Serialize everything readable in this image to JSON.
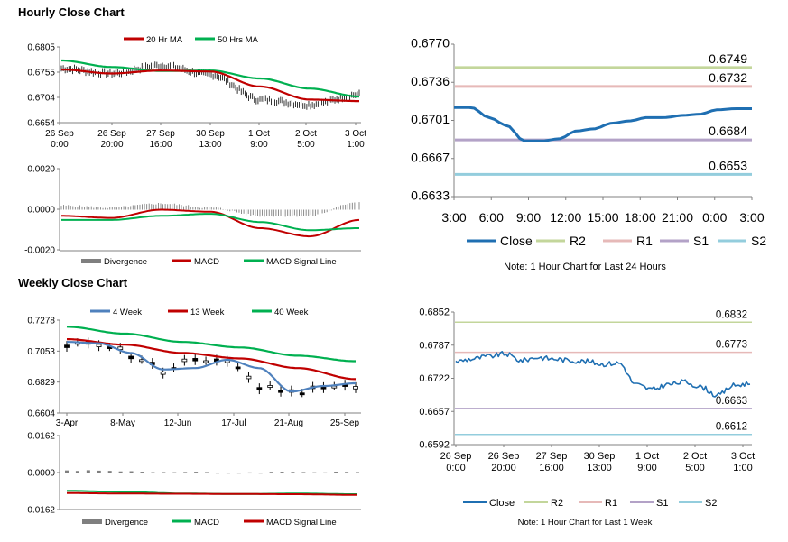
{
  "hourly": {
    "title": "Hourly Close Chart",
    "price_panel": {
      "legend": [
        "20 Hr MA",
        "50 Hrs MA"
      ],
      "y_ticks": [
        "0.6805",
        "0.6755",
        "0.6704",
        "0.6654"
      ],
      "x_ticks": [
        "26 Sep\n0:00",
        "26 Sep\n20:00",
        "27 Sep\n16:00",
        "30 Sep\n13:00",
        "1 Oct\n9:00",
        "2 Oct\n5:00",
        "3 Oct\n1:00"
      ]
    },
    "macd_panel": {
      "y_ticks": [
        "0.0020",
        "0.0000",
        "-0.0020"
      ],
      "legend": [
        "Divergence",
        "MACD",
        "MACD Signal Line"
      ]
    },
    "pivot_chart": {
      "y_ticks": [
        "0.6770",
        "0.6736",
        "0.6701",
        "0.6667",
        "0.6633"
      ],
      "x_ticks": [
        "3:00",
        "6:00",
        "9:00",
        "12:00",
        "15:00",
        "18:00",
        "21:00",
        "0:00",
        "3:00"
      ],
      "legend": [
        "Close",
        "R2",
        "R1",
        "S1",
        "S2"
      ],
      "note": "Note: 1 Hour Chart for Last 24 Hours"
    }
  },
  "weekly": {
    "title": "Weekly Close Chart",
    "price_panel": {
      "legend": [
        "4 Week",
        "13 Week",
        "40 Week"
      ],
      "y_ticks": [
        "0.7278",
        "0.7053",
        "0.6829",
        "0.6604"
      ],
      "x_ticks": [
        "3-Apr",
        "8-May",
        "12-Jun",
        "17-Jul",
        "21-Aug",
        "25-Sep"
      ]
    },
    "macd_panel": {
      "y_ticks": [
        "0.0162",
        "0.0000",
        "-0.0162"
      ],
      "legend": [
        "Divergence",
        "MACD",
        "MACD Signal Line"
      ]
    },
    "pivot_chart": {
      "y_ticks": [
        "0.6852",
        "0.6787",
        "0.6722",
        "0.6657",
        "0.6592"
      ],
      "x_ticks": [
        "26 Sep\n0:00",
        "26 Sep\n20:00",
        "27 Sep\n16:00",
        "30 Sep\n13:00",
        "1 Oct\n9:00",
        "2 Oct\n5:00",
        "3 Oct\n1:00"
      ],
      "legend": [
        "Close",
        "R2",
        "R1",
        "S1",
        "S2"
      ],
      "note": "Note: 1 Hour Chart for Last 1 Week"
    }
  },
  "colors": {
    "ma_red": "#c00000",
    "ma_green": "#00b050",
    "ma_blue": "#4f81bd",
    "close": "#1f6fb2",
    "r2": "#c3d69b",
    "r1": "#e6b9b8",
    "s1": "#b3a2c7",
    "s2": "#93cddd",
    "divergence": "#7f7f7f",
    "candle": "#000000"
  },
  "chart_data": [
    {
      "type": "line",
      "title": "Hourly Close Chart",
      "x": [
        "26 Sep 0:00",
        "26 Sep 20:00",
        "27 Sep 16:00",
        "30 Sep 13:00",
        "1 Oct 9:00",
        "2 Oct 5:00",
        "3 Oct 1:00"
      ],
      "ylim": [
        0.6654,
        0.6805
      ],
      "series": [
        {
          "name": "20 Hr MA",
          "values": [
            0.676,
            0.6752,
            0.6758,
            0.6756,
            0.6726,
            0.67,
            0.6697
          ]
        },
        {
          "name": "50 Hrs MA",
          "values": [
            0.6778,
            0.6765,
            0.6757,
            0.6758,
            0.6742,
            0.6722,
            0.6706
          ]
        },
        {
          "name": "Close",
          "values": [
            0.6762,
            0.6752,
            0.6768,
            0.675,
            0.67,
            0.669,
            0.671
          ]
        }
      ]
    },
    {
      "type": "line",
      "title": "",
      "ylim": [
        -0.002,
        0.002
      ],
      "series": [
        {
          "name": "MACD",
          "values": [
            -0.0003,
            -0.0004,
            0.0,
            -0.0001,
            -0.0009,
            -0.0013,
            -0.0005
          ]
        },
        {
          "name": "MACD Signal Line",
          "values": [
            -0.0005,
            -0.0005,
            -0.0003,
            -0.0002,
            -0.0006,
            -0.001,
            -0.0009
          ]
        },
        {
          "name": "Divergence",
          "values": [
            0.0002,
            0.0001,
            0.0003,
            0.0001,
            -0.0003,
            -0.0003,
            0.0004
          ]
        }
      ]
    },
    {
      "type": "line",
      "title": "",
      "x": [
        "3:00",
        "6:00",
        "9:00",
        "12:00",
        "15:00",
        "18:00",
        "21:00",
        "0:00",
        "3:00"
      ],
      "ylim": [
        0.6633,
        0.677
      ],
      "series": [
        {
          "name": "Close",
          "values": [
            0.6713,
            0.6704,
            0.6683,
            0.6685,
            0.6694,
            0.6699,
            0.6704,
            0.671,
            0.6712
          ]
        },
        {
          "name": "R2",
          "values": [
            0.6749,
            0.6749,
            0.6749,
            0.6749,
            0.6749,
            0.6749,
            0.6749,
            0.6749,
            0.6749
          ]
        },
        {
          "name": "R1",
          "values": [
            0.6732,
            0.6732,
            0.6732,
            0.6732,
            0.6732,
            0.6732,
            0.6732,
            0.6732,
            0.6732
          ]
        },
        {
          "name": "S1",
          "values": [
            0.6684,
            0.6684,
            0.6684,
            0.6684,
            0.6684,
            0.6684,
            0.6684,
            0.6684,
            0.6684
          ]
        },
        {
          "name": "S2",
          "values": [
            0.6653,
            0.6653,
            0.6653,
            0.6653,
            0.6653,
            0.6653,
            0.6653,
            0.6653,
            0.6653
          ]
        }
      ]
    },
    {
      "type": "line",
      "title": "Weekly Close Chart",
      "x": [
        "3-Apr",
        "8-May",
        "12-Jun",
        "17-Jul",
        "21-Aug",
        "25-Sep"
      ],
      "ylim": [
        0.6604,
        0.7278
      ],
      "series": [
        {
          "name": "4 Week",
          "values": [
            0.712,
            0.705,
            0.692,
            0.699,
            0.676,
            0.682
          ]
        },
        {
          "name": "13 Week",
          "values": [
            0.714,
            0.71,
            0.704,
            0.7,
            0.693,
            0.685
          ]
        },
        {
          "name": "40 Week",
          "values": [
            0.723,
            0.718,
            0.712,
            0.708,
            0.702,
            0.698
          ]
        }
      ]
    },
    {
      "type": "line",
      "title": "",
      "ylim": [
        -0.0162,
        0.0162
      ],
      "series": [
        {
          "name": "MACD",
          "values": [
            -0.008,
            -0.0085,
            -0.0092,
            -0.0094,
            -0.0092,
            -0.0095
          ]
        },
        {
          "name": "MACD Signal Line",
          "values": [
            -0.009,
            -0.0092,
            -0.0093,
            -0.0094,
            -0.0095,
            -0.0098
          ]
        },
        {
          "name": "Divergence",
          "values": [
            0.001,
            0.0006,
            0.0001,
            0.0,
            0.0003,
            0.0003
          ]
        }
      ]
    },
    {
      "type": "line",
      "title": "",
      "x": [
        "26 Sep 0:00",
        "26 Sep 20:00",
        "27 Sep 16:00",
        "30 Sep 13:00",
        "1 Oct 9:00",
        "2 Oct 5:00",
        "3 Oct 1:00"
      ],
      "ylim": [
        0.6592,
        0.6852
      ],
      "series": [
        {
          "name": "Close",
          "values": [
            0.676,
            0.6765,
            0.6762,
            0.6755,
            0.6705,
            0.6712,
            0.6717
          ]
        },
        {
          "name": "R2",
          "values": [
            0.6832,
            0.6832,
            0.6832,
            0.6832,
            0.6832,
            0.6832,
            0.6832
          ]
        },
        {
          "name": "R1",
          "values": [
            0.6773,
            0.6773,
            0.6773,
            0.6773,
            0.6773,
            0.6773,
            0.6773
          ]
        },
        {
          "name": "S1",
          "values": [
            0.6663,
            0.6663,
            0.6663,
            0.6663,
            0.6663,
            0.6663,
            0.6663
          ]
        },
        {
          "name": "S2",
          "values": [
            0.6612,
            0.6612,
            0.6612,
            0.6612,
            0.6612,
            0.6612,
            0.6612
          ]
        }
      ]
    }
  ]
}
